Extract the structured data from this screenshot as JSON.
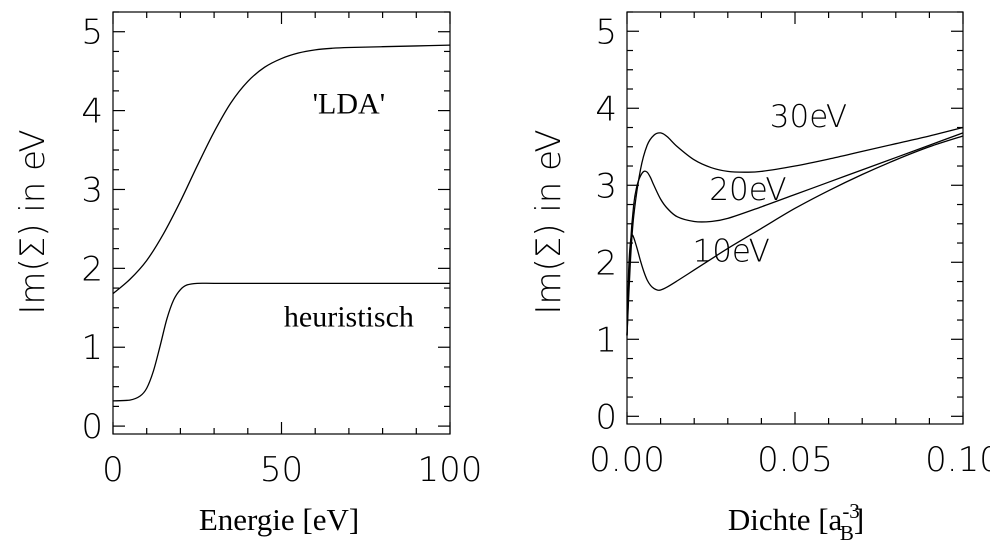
{
  "chart_data": [
    {
      "type": "line",
      "xlabel": "Energie [eV]",
      "ylabel": "Im(Σ) in eV",
      "xlim": [
        0,
        100
      ],
      "ylim": [
        -0.1,
        5.25
      ],
      "xticks": [
        "0",
        "50",
        "100"
      ],
      "yticks": [
        "0",
        "1",
        "2",
        "3",
        "4",
        "5"
      ],
      "annotations": [
        {
          "text": "'LDA'",
          "x": 70,
          "y": 4.1
        },
        {
          "text": "heuristisch",
          "x": 70,
          "y": 1.4
        }
      ],
      "series": [
        {
          "name": "'LDA'",
          "x": [
            0,
            5,
            10,
            15,
            20,
            25,
            30,
            35,
            40,
            45,
            50,
            55,
            60,
            65,
            70,
            80,
            90,
            100
          ],
          "y": [
            1.68,
            1.86,
            2.1,
            2.44,
            2.85,
            3.3,
            3.73,
            4.1,
            4.37,
            4.55,
            4.66,
            4.73,
            4.77,
            4.79,
            4.8,
            4.81,
            4.82,
            4.83
          ]
        },
        {
          "name": "heuristisch",
          "x": [
            0,
            5,
            8,
            10,
            12,
            14,
            16,
            18,
            20,
            22,
            25,
            30,
            40,
            60,
            80,
            100
          ],
          "y": [
            0.32,
            0.33,
            0.38,
            0.48,
            0.7,
            1.02,
            1.36,
            1.6,
            1.73,
            1.79,
            1.81,
            1.81,
            1.81,
            1.81,
            1.81,
            1.81
          ]
        }
      ]
    },
    {
      "type": "line",
      "xlabel_prefix": "Dichte [a",
      "xlabel_sup": "-3",
      "xlabel_sub": "B",
      "xlabel_suffix": "]",
      "ylabel": "Im(Σ) in eV",
      "xlim": [
        0,
        0.1
      ],
      "ylim": [
        -0.1,
        5.25
      ],
      "xticks": [
        "0.00",
        "0.05",
        "0.10"
      ],
      "yticks": [
        "0",
        "1",
        "2",
        "3",
        "4",
        "5"
      ],
      "annotations": [
        {
          "text": "30eV",
          "x": 0.054,
          "y": 3.9
        },
        {
          "text": "20eV",
          "x": 0.036,
          "y": 2.95
        },
        {
          "text": "10eV",
          "x": 0.031,
          "y": 2.15
        }
      ],
      "series": [
        {
          "name": "30eV",
          "x": [
            0.0,
            0.001,
            0.002,
            0.004,
            0.006,
            0.008,
            0.01,
            0.012,
            0.015,
            0.02,
            0.025,
            0.03,
            0.035,
            0.04,
            0.05,
            0.06,
            0.07,
            0.08,
            0.09,
            0.1
          ],
          "y": [
            1.05,
            2.0,
            2.6,
            3.2,
            3.52,
            3.65,
            3.68,
            3.63,
            3.5,
            3.33,
            3.23,
            3.18,
            3.17,
            3.18,
            3.25,
            3.34,
            3.44,
            3.54,
            3.64,
            3.75
          ]
        },
        {
          "name": "20eV",
          "x": [
            0.0,
            0.001,
            0.002,
            0.003,
            0.004,
            0.005,
            0.006,
            0.007,
            0.008,
            0.01,
            0.012,
            0.015,
            0.02,
            0.025,
            0.03,
            0.04,
            0.05,
            0.06,
            0.07,
            0.08,
            0.09,
            0.1
          ],
          "y": [
            1.05,
            2.2,
            2.75,
            3.0,
            3.12,
            3.18,
            3.17,
            3.1,
            3.0,
            2.82,
            2.7,
            2.59,
            2.53,
            2.53,
            2.57,
            2.72,
            2.88,
            3.04,
            3.2,
            3.36,
            3.52,
            3.68
          ]
        },
        {
          "name": "10eV",
          "x": [
            0.0,
            0.0005,
            0.001,
            0.0015,
            0.002,
            0.003,
            0.004,
            0.005,
            0.006,
            0.007,
            0.008,
            0.009,
            0.01,
            0.012,
            0.015,
            0.02,
            0.025,
            0.03,
            0.04,
            0.05,
            0.06,
            0.07,
            0.08,
            0.09,
            0.1
          ],
          "y": [
            1.05,
            1.9,
            2.25,
            2.35,
            2.32,
            2.18,
            2.02,
            1.88,
            1.77,
            1.7,
            1.66,
            1.64,
            1.64,
            1.68,
            1.76,
            1.9,
            2.04,
            2.18,
            2.44,
            2.7,
            2.93,
            3.14,
            3.33,
            3.5,
            3.64
          ]
        }
      ]
    }
  ]
}
